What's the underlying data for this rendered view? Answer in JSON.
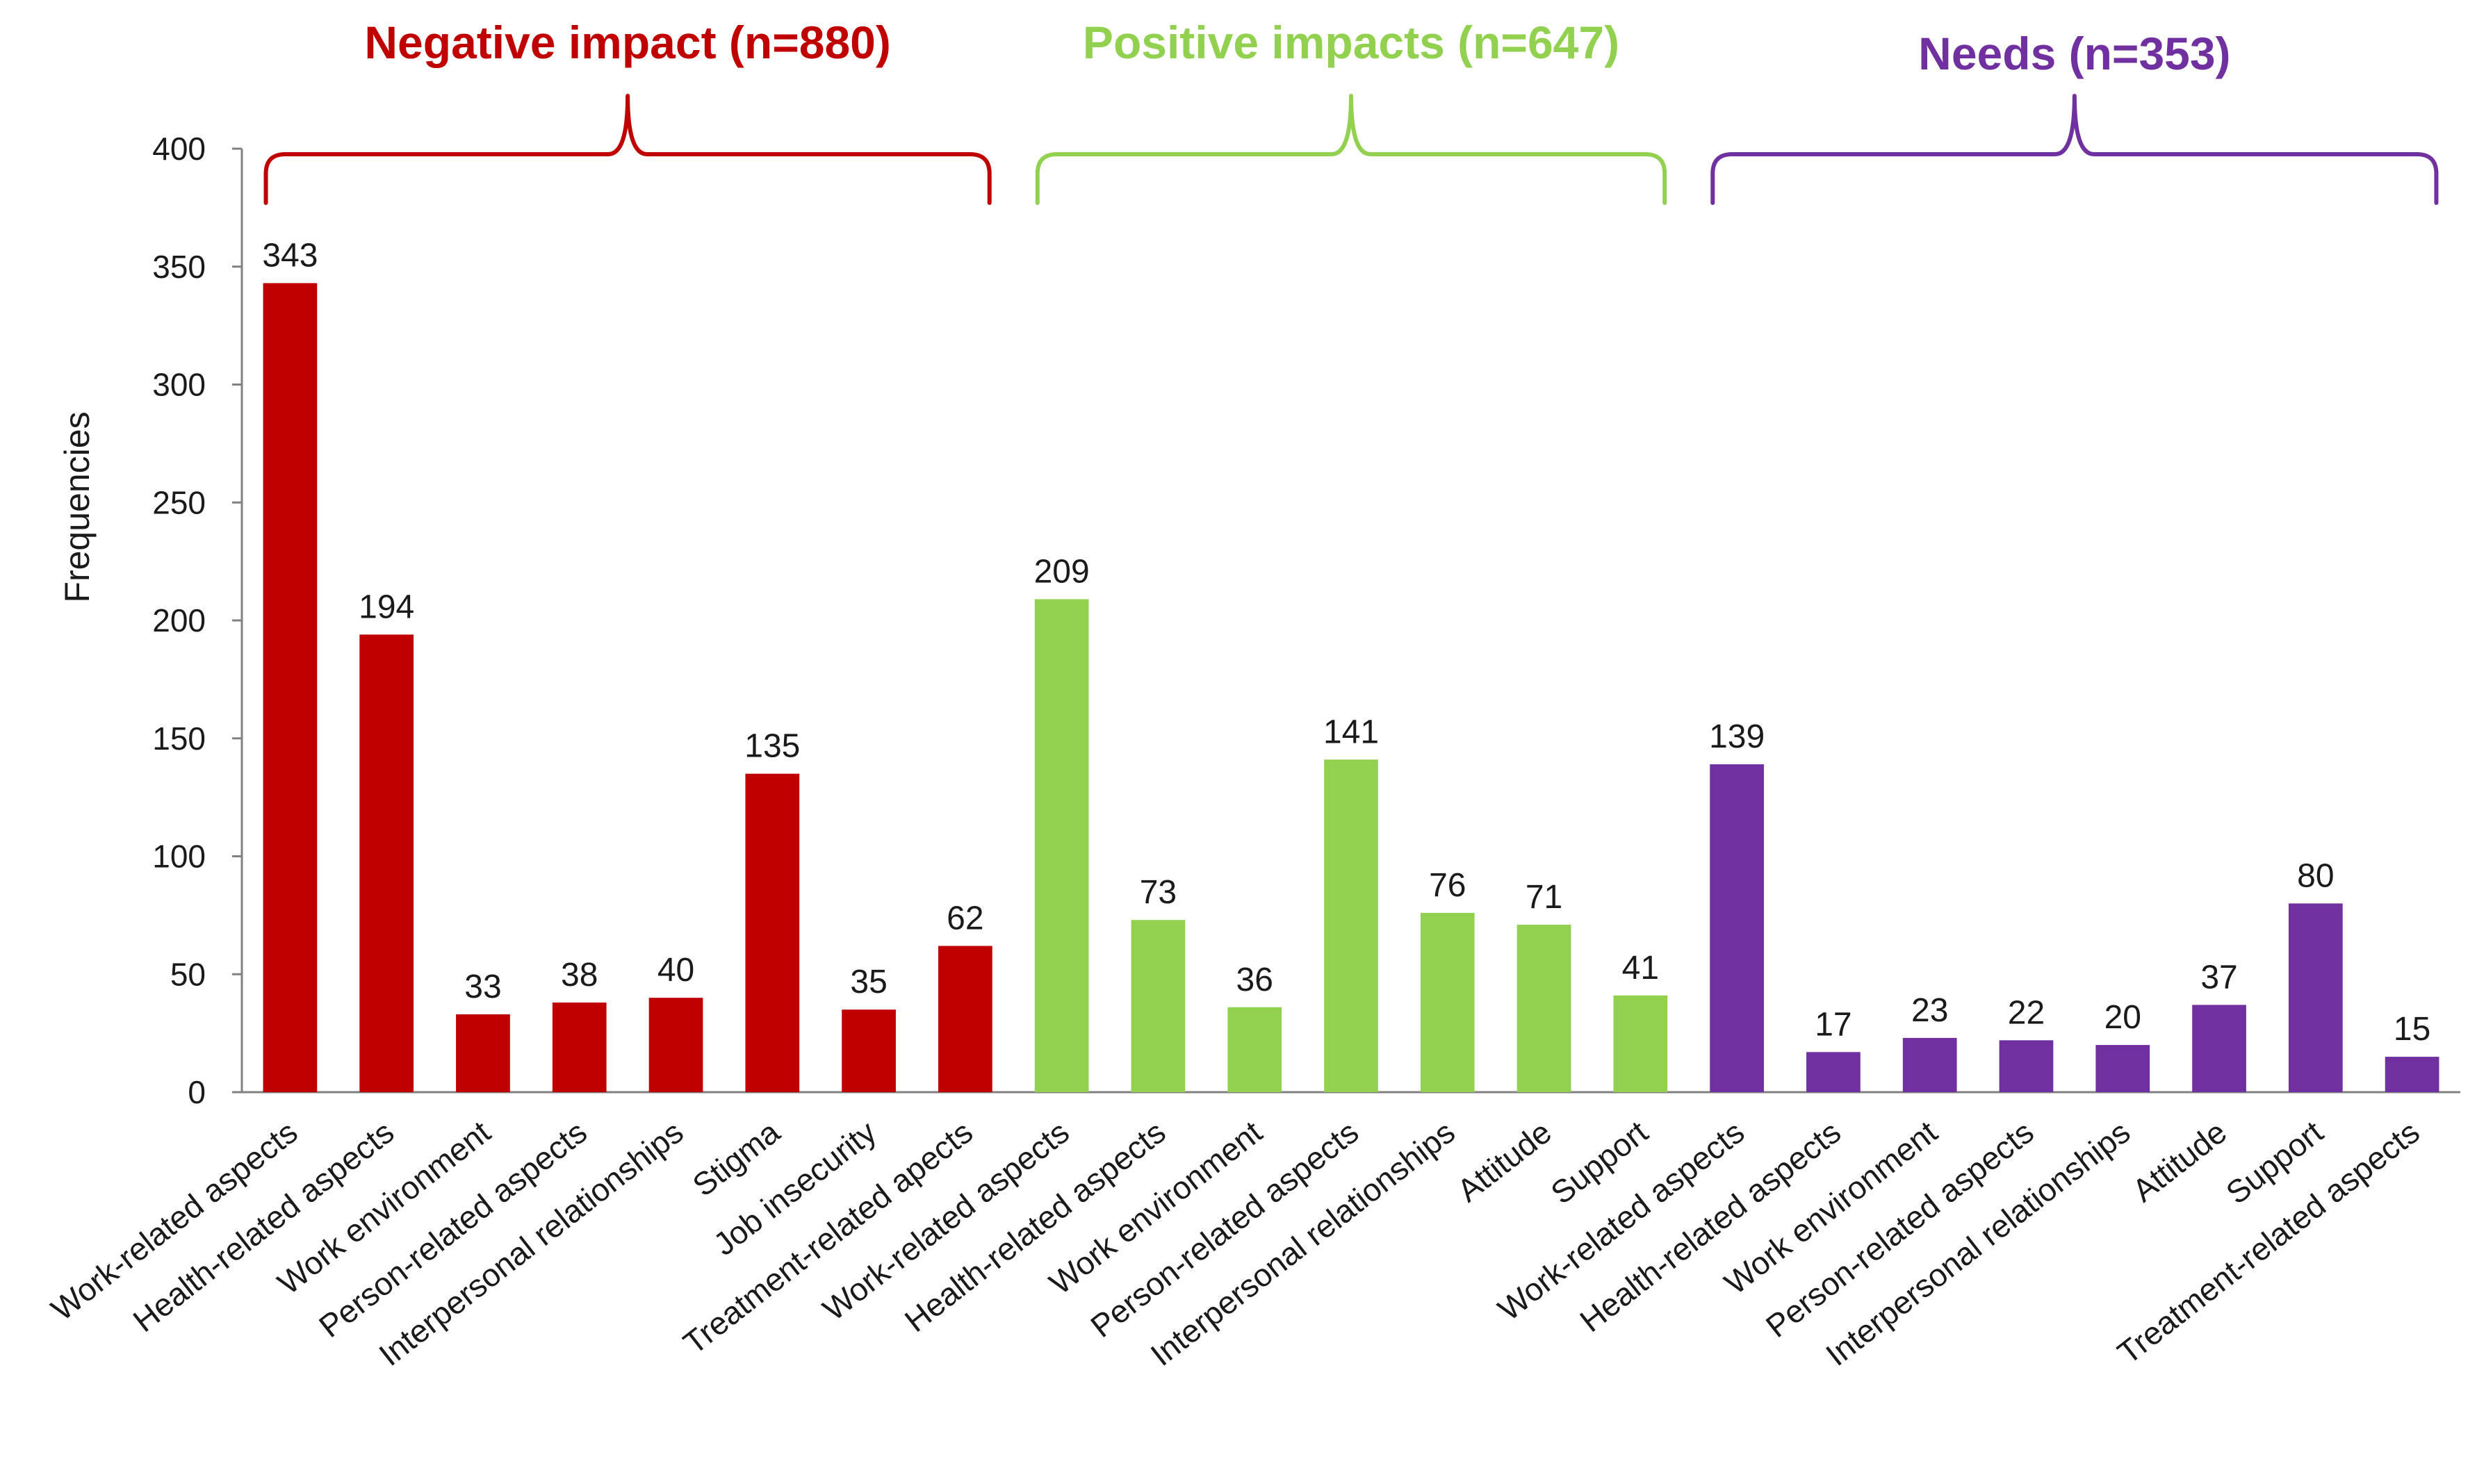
{
  "chart_data": {
    "type": "bar",
    "title": "",
    "xlabel": "",
    "ylabel": "Frequencies",
    "ylim": [
      0,
      400
    ],
    "yticks": [
      0,
      50,
      100,
      150,
      200,
      250,
      300,
      350,
      400
    ],
    "grid": false,
    "legend": "none",
    "groups": [
      {
        "name": "Negative impact (n=880)",
        "color": "#c00000",
        "categories": [
          "Work-related aspects",
          "Health-related aspects",
          "Work environment",
          "Person-related aspects",
          "Interpersonal relationships",
          "Stigma",
          "Job insecurity",
          "Treatment-related apects"
        ],
        "values": [
          343,
          194,
          33,
          38,
          40,
          135,
          35,
          62
        ]
      },
      {
        "name": "Positive impacts (n=647)",
        "color": "#92d050",
        "categories": [
          "Work-related aspects",
          "Health-related aspects",
          "Work environment",
          "Person-related aspects",
          "Interpersonal relationships",
          "Attitude",
          "Support"
        ],
        "values": [
          209,
          73,
          36,
          141,
          76,
          71,
          41
        ]
      },
      {
        "name": "Needs (n=353)",
        "color": "#7030a0",
        "categories": [
          "Work-related aspects",
          "Health-related aspects",
          "Work environment",
          "Person-related aspects",
          "Interpersonal relationships",
          "Attitude",
          "Support",
          "Treatment-related aspects"
        ],
        "values": [
          139,
          17,
          23,
          22,
          20,
          37,
          80,
          15
        ]
      }
    ]
  }
}
